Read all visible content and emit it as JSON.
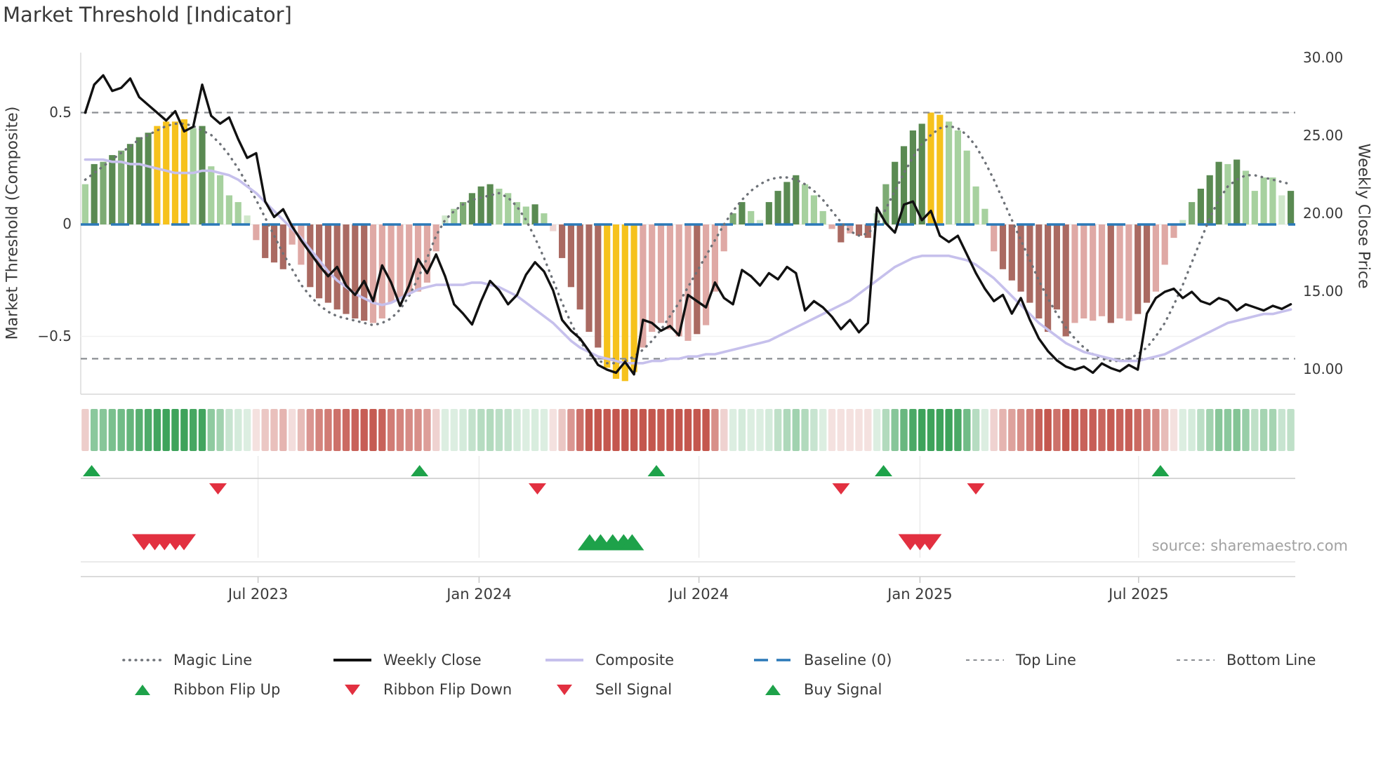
{
  "title": "Market Threshold [Indicator]",
  "source_note": "source: sharemaestro.com",
  "colors": {
    "text": "#3a3a3a",
    "muted_text": "#a2a2a2",
    "weekly_close": "#111111",
    "composite": "#c6c0ec",
    "magic_line": "#6e7278",
    "baseline": "#2b79b8",
    "ref_line": "#8a8d92",
    "signal_green": "#1ea24a",
    "signal_red": "#e23040",
    "ribbon_green": "#3ea35b",
    "ribbon_red": "#c4574e",
    "bar_palette": {
      "dg": "#5a8a52",
      "mg": "#7dab74",
      "lg": "#a7d19f",
      "pg": "#cfe7ca",
      "y": "#f6c21c",
      "pk": "#dfa9a5",
      "br": "#aa6a62",
      "pp": "#eed4d1"
    }
  },
  "chart_data": {
    "type": "bar",
    "title": "Market Threshold [Indicator]",
    "left_axis": {
      "label": "Market Threshold (Composite)",
      "range": [
        -0.76,
        0.77
      ],
      "ticks": [
        {
          "label": "0.5",
          "v": 0.5
        },
        {
          "label": "0",
          "v": 0.0
        },
        {
          "label": "−0.5",
          "v": -0.5
        }
      ]
    },
    "right_axis": {
      "label": "Weekly Close Price",
      "range": [
        8.4,
        30.4
      ],
      "ticks": [
        {
          "label": "30.00",
          "v": 30
        },
        {
          "label": "25.00",
          "v": 25
        },
        {
          "label": "20.00",
          "v": 20
        },
        {
          "label": "15.00",
          "v": 15
        },
        {
          "label": "10.00",
          "v": 10
        }
      ]
    },
    "x_axis": {
      "ticks": [
        {
          "label": "Jul 2023",
          "f": 0.146
        },
        {
          "label": "Jan 2024",
          "f": 0.328
        },
        {
          "label": "Jul 2024",
          "f": 0.509
        },
        {
          "label": "Jan 2025",
          "f": 0.691
        },
        {
          "label": "Jul 2025",
          "f": 0.871
        }
      ]
    },
    "ref_lines": {
      "top_line": 0.5,
      "baseline": 0.0,
      "bottom_line": -0.6
    },
    "bars": {
      "values": [
        0.18,
        0.27,
        0.28,
        0.31,
        0.33,
        0.36,
        0.39,
        0.41,
        0.44,
        0.46,
        0.46,
        0.47,
        0.43,
        0.44,
        0.26,
        0.22,
        0.13,
        0.1,
        0.04,
        -0.07,
        -0.15,
        -0.17,
        -0.2,
        -0.09,
        -0.18,
        -0.28,
        -0.33,
        -0.35,
        -0.38,
        -0.4,
        -0.42,
        -0.43,
        -0.44,
        -0.42,
        -0.35,
        -0.33,
        -0.31,
        -0.3,
        -0.26,
        -0.12,
        0.04,
        0.07,
        0.1,
        0.14,
        0.17,
        0.18,
        0.16,
        0.14,
        0.1,
        0.08,
        0.09,
        0.05,
        -0.03,
        -0.15,
        -0.28,
        -0.38,
        -0.48,
        -0.55,
        -0.64,
        -0.69,
        -0.7,
        -0.66,
        -0.55,
        -0.48,
        -0.44,
        -0.47,
        -0.5,
        -0.52,
        -0.49,
        -0.45,
        -0.3,
        -0.12,
        0.05,
        0.1,
        0.06,
        0.02,
        0.1,
        0.15,
        0.19,
        0.22,
        0.18,
        0.13,
        0.06,
        -0.02,
        -0.08,
        -0.04,
        -0.05,
        -0.06,
        0.05,
        0.18,
        0.28,
        0.35,
        0.42,
        0.45,
        0.5,
        0.49,
        0.46,
        0.42,
        0.33,
        0.17,
        0.07,
        -0.12,
        -0.2,
        -0.25,
        -0.3,
        -0.35,
        -0.42,
        -0.48,
        -0.38,
        -0.5,
        -0.44,
        -0.42,
        -0.43,
        -0.41,
        -0.44,
        -0.42,
        -0.43,
        -0.4,
        -0.35,
        -0.3,
        -0.18,
        -0.06,
        0.02,
        0.1,
        0.16,
        0.22,
        0.28,
        0.27,
        0.29,
        0.24,
        0.15,
        0.21,
        0.21,
        0.13,
        0.15
      ],
      "colors": [
        "lg",
        "dg",
        "mg",
        "dg",
        "mg",
        "dg",
        "dg",
        "dg",
        "y",
        "y",
        "y",
        "y",
        "lg",
        "dg",
        "lg",
        "lg",
        "lg",
        "lg",
        "pg",
        "pk",
        "br",
        "br",
        "br",
        "pk",
        "pk",
        "br",
        "br",
        "br",
        "br",
        "br",
        "br",
        "br",
        "pk",
        "pk",
        "pk",
        "pk",
        "pk",
        "pk",
        "pk",
        "pk",
        "pg",
        "lg",
        "mg",
        "dg",
        "dg",
        "dg",
        "lg",
        "lg",
        "lg",
        "lg",
        "dg",
        "lg",
        "pp",
        "br",
        "br",
        "br",
        "br",
        "br",
        "y",
        "y",
        "y",
        "y",
        "pk",
        "pk",
        "pk",
        "pk",
        "pk",
        "pk",
        "br",
        "pk",
        "pk",
        "pk",
        "mg",
        "dg",
        "lg",
        "pg",
        "dg",
        "dg",
        "dg",
        "dg",
        "lg",
        "lg",
        "lg",
        "pk",
        "br",
        "pk",
        "br",
        "br",
        "pg",
        "mg",
        "dg",
        "dg",
        "dg",
        "dg",
        "y",
        "y",
        "lg",
        "lg",
        "lg",
        "lg",
        "lg",
        "pk",
        "br",
        "br",
        "br",
        "br",
        "br",
        "br",
        "br",
        "br",
        "pk",
        "pk",
        "pk",
        "pk",
        "br",
        "pk",
        "pk",
        "br",
        "br",
        "pk",
        "pk",
        "pk",
        "pg",
        "mg",
        "dg",
        "dg",
        "dg",
        "lg",
        "dg",
        "lg",
        "lg",
        "lg",
        "lg",
        "pg",
        "dg"
      ]
    },
    "series": {
      "weekly_close": {
        "name": "Weekly Close",
        "axis": "right",
        "values": [
          26.5,
          28.3,
          28.9,
          27.9,
          28.1,
          28.7,
          27.5,
          27.0,
          26.5,
          26.0,
          26.6,
          25.3,
          25.6,
          28.3,
          26.3,
          25.8,
          26.2,
          24.8,
          23.6,
          23.9,
          20.8,
          19.8,
          20.3,
          19.2,
          18.3,
          17.5,
          16.7,
          16.0,
          16.6,
          15.4,
          14.8,
          15.7,
          14.4,
          16.7,
          15.6,
          14.1,
          15.4,
          17.1,
          16.2,
          17.4,
          16.0,
          14.2,
          13.6,
          12.9,
          14.4,
          15.7,
          15.1,
          14.2,
          14.8,
          16.1,
          16.9,
          16.3,
          15.1,
          13.2,
          12.5,
          12.0,
          11.2,
          10.3,
          10.0,
          9.8,
          10.5,
          9.7,
          13.2,
          13.0,
          12.5,
          12.8,
          12.2,
          14.8,
          14.4,
          14.0,
          15.6,
          14.6,
          14.2,
          16.4,
          16.0,
          15.4,
          16.2,
          15.8,
          16.6,
          16.2,
          13.8,
          14.4,
          14.0,
          13.4,
          12.6,
          13.2,
          12.4,
          13.0,
          20.4,
          19.4,
          18.8,
          20.6,
          20.8,
          19.6,
          20.2,
          18.6,
          18.2,
          18.6,
          17.4,
          16.2,
          15.2,
          14.4,
          14.8,
          13.6,
          14.6,
          13.2,
          12.0,
          11.2,
          10.6,
          10.2,
          10.0,
          10.2,
          9.8,
          10.4,
          10.1,
          9.9,
          10.3,
          10.0,
          13.6,
          14.6,
          15.0,
          15.2,
          14.6,
          15.0,
          14.4,
          14.2,
          14.6,
          14.4,
          13.8,
          14.2,
          14.0,
          13.8,
          14.1,
          13.9,
          14.2
        ]
      },
      "composite": {
        "name": "Composite",
        "axis": "left",
        "values": [
          0.29,
          0.29,
          0.29,
          0.28,
          0.28,
          0.27,
          0.27,
          0.26,
          0.25,
          0.24,
          0.23,
          0.23,
          0.23,
          0.24,
          0.24,
          0.23,
          0.22,
          0.2,
          0.17,
          0.14,
          0.1,
          0.06,
          0.02,
          -0.02,
          -0.06,
          -0.11,
          -0.16,
          -0.21,
          -0.25,
          -0.28,
          -0.31,
          -0.33,
          -0.35,
          -0.36,
          -0.35,
          -0.33,
          -0.31,
          -0.29,
          -0.28,
          -0.27,
          -0.27,
          -0.27,
          -0.27,
          -0.26,
          -0.26,
          -0.27,
          -0.28,
          -0.3,
          -0.32,
          -0.35,
          -0.38,
          -0.41,
          -0.44,
          -0.48,
          -0.52,
          -0.55,
          -0.57,
          -0.59,
          -0.6,
          -0.61,
          -0.62,
          -0.62,
          -0.62,
          -0.61,
          -0.61,
          -0.6,
          -0.6,
          -0.59,
          -0.59,
          -0.58,
          -0.58,
          -0.57,
          -0.56,
          -0.55,
          -0.54,
          -0.53,
          -0.52,
          -0.5,
          -0.48,
          -0.46,
          -0.44,
          -0.42,
          -0.4,
          -0.38,
          -0.36,
          -0.34,
          -0.31,
          -0.28,
          -0.25,
          -0.22,
          -0.19,
          -0.17,
          -0.15,
          -0.14,
          -0.14,
          -0.14,
          -0.14,
          -0.15,
          -0.16,
          -0.18,
          -0.21,
          -0.24,
          -0.28,
          -0.32,
          -0.36,
          -0.4,
          -0.44,
          -0.47,
          -0.5,
          -0.53,
          -0.55,
          -0.57,
          -0.58,
          -0.59,
          -0.6,
          -0.61,
          -0.61,
          -0.61,
          -0.6,
          -0.59,
          -0.58,
          -0.56,
          -0.54,
          -0.52,
          -0.5,
          -0.48,
          -0.46,
          -0.44,
          -0.43,
          -0.42,
          -0.41,
          -0.4,
          -0.4,
          -0.39,
          -0.38
        ]
      },
      "magic_line": {
        "name": "Magic Line",
        "axis": "left",
        "values": [
          0.2,
          0.23,
          0.26,
          0.29,
          0.32,
          0.35,
          0.38,
          0.4,
          0.42,
          0.44,
          0.45,
          0.45,
          0.44,
          0.42,
          0.4,
          0.36,
          0.31,
          0.25,
          0.18,
          0.11,
          0.03,
          -0.05,
          -0.13,
          -0.2,
          -0.27,
          -0.32,
          -0.36,
          -0.39,
          -0.41,
          -0.42,
          -0.43,
          -0.44,
          -0.45,
          -0.44,
          -0.42,
          -0.38,
          -0.32,
          -0.24,
          -0.15,
          -0.05,
          0.02,
          0.06,
          0.09,
          0.11,
          0.12,
          0.13,
          0.14,
          0.12,
          0.08,
          0.02,
          -0.06,
          -0.15,
          -0.25,
          -0.35,
          -0.44,
          -0.52,
          -0.58,
          -0.61,
          -0.62,
          -0.62,
          -0.61,
          -0.59,
          -0.56,
          -0.52,
          -0.47,
          -0.41,
          -0.35,
          -0.28,
          -0.21,
          -0.14,
          -0.07,
          0.0,
          0.06,
          0.11,
          0.15,
          0.18,
          0.2,
          0.21,
          0.21,
          0.2,
          0.18,
          0.15,
          0.11,
          0.06,
          0.01,
          -0.03,
          -0.05,
          -0.04,
          0.0,
          0.07,
          0.15,
          0.23,
          0.3,
          0.36,
          0.4,
          0.43,
          0.44,
          0.43,
          0.4,
          0.35,
          0.28,
          0.2,
          0.11,
          0.02,
          -0.07,
          -0.16,
          -0.25,
          -0.33,
          -0.4,
          -0.46,
          -0.51,
          -0.55,
          -0.58,
          -0.6,
          -0.61,
          -0.61,
          -0.6,
          -0.58,
          -0.55,
          -0.5,
          -0.44,
          -0.36,
          -0.27,
          -0.17,
          -0.07,
          0.03,
          0.11,
          0.17,
          0.2,
          0.22,
          0.22,
          0.21,
          0.2,
          0.19,
          0.18
        ]
      }
    },
    "signals": {
      "ribbon_first_cell_red": true,
      "ribbon_flip_up": {
        "label": "Ribbon Flip Up",
        "fractions": [
          0.009,
          0.279,
          0.474,
          0.661,
          0.889
        ]
      },
      "ribbon_flip_down": {
        "label": "Ribbon Flip Down",
        "fractions": [
          0.113,
          0.376,
          0.626,
          0.737
        ]
      },
      "sell": {
        "label": "Sell Signal",
        "fractions": [
          0.052,
          0.061,
          0.069,
          0.078,
          0.085,
          0.683,
          0.691,
          0.699
        ]
      },
      "buy": {
        "label": "Buy Signal",
        "fractions": [
          0.419,
          0.428,
          0.438,
          0.447,
          0.454
        ]
      }
    }
  },
  "legend": {
    "row1": [
      {
        "label": "Magic Line",
        "swatch": "dotted-gray"
      },
      {
        "label": "Weekly Close",
        "swatch": "solid-black"
      },
      {
        "label": "Composite",
        "swatch": "solid-lavender"
      },
      {
        "label": "Baseline (0)",
        "swatch": "dashed-blue"
      },
      {
        "label": "Top Line",
        "swatch": "dashed-gray"
      },
      {
        "label": "Bottom Line",
        "swatch": "dashed-gray"
      }
    ],
    "row2": [
      {
        "label": "Ribbon Flip Up",
        "swatch": "tri-up-green"
      },
      {
        "label": "Ribbon Flip Down",
        "swatch": "tri-down-red"
      },
      {
        "label": "Sell Signal",
        "swatch": "tri-down-red"
      },
      {
        "label": "Buy Signal",
        "swatch": "tri-up-green"
      }
    ]
  }
}
